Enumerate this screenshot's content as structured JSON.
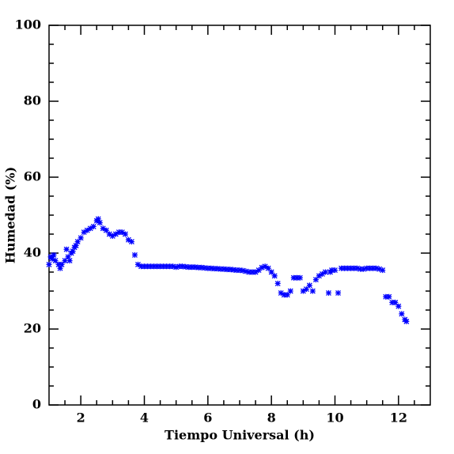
{
  "chart_data": {
    "type": "scatter",
    "x_label": "Tiempo Universal (h)",
    "y_label": "Humedad (%)",
    "color": "#0000ff",
    "xlim": [
      1,
      13
    ],
    "ylim": [
      0,
      100
    ],
    "xticks": [
      2,
      4,
      6,
      8,
      10,
      12
    ],
    "yticks": [
      0,
      20,
      40,
      60,
      80,
      100
    ],
    "xticks_minor": [
      1.5,
      2.5,
      3,
      3.5,
      4.5,
      5,
      5.5,
      6.5,
      7,
      7.5,
      8.5,
      9,
      9.5,
      10.5,
      11,
      11.5,
      12.5
    ],
    "yticks_minor": [
      5,
      10,
      15,
      25,
      30,
      35,
      45,
      50,
      55,
      65,
      70,
      75,
      85,
      90,
      95
    ],
    "x": [
      1.0,
      1.05,
      1.1,
      1.15,
      1.2,
      1.3,
      1.35,
      1.4,
      1.5,
      1.55,
      1.6,
      1.65,
      1.7,
      1.75,
      1.8,
      1.85,
      1.9,
      2.0,
      2.1,
      2.2,
      2.3,
      2.4,
      2.5,
      2.55,
      2.6,
      2.7,
      2.8,
      2.9,
      3.0,
      3.1,
      3.2,
      3.3,
      3.4,
      3.5,
      3.6,
      3.7,
      3.8,
      3.9,
      4.0,
      4.1,
      4.2,
      4.3,
      4.4,
      4.5,
      4.6,
      4.7,
      4.8,
      4.9,
      5.0,
      5.1,
      5.2,
      5.3,
      5.4,
      5.5,
      5.6,
      5.7,
      5.8,
      5.9,
      6.0,
      6.1,
      6.2,
      6.3,
      6.4,
      6.5,
      6.6,
      6.7,
      6.8,
      6.9,
      7.0,
      7.1,
      7.2,
      7.3,
      7.4,
      7.5,
      7.6,
      7.7,
      7.8,
      7.9,
      8.0,
      8.1,
      8.2,
      8.3,
      8.4,
      8.5,
      8.6,
      8.7,
      8.8,
      8.9,
      9.0,
      9.1,
      9.2,
      9.3,
      9.4,
      9.5,
      9.6,
      9.7,
      9.8,
      9.85,
      9.9,
      10.0,
      10.1,
      10.2,
      10.3,
      10.4,
      10.5,
      10.6,
      10.7,
      10.8,
      10.9,
      11.0,
      11.1,
      11.2,
      11.3,
      11.4,
      11.5,
      11.6,
      11.7,
      11.8,
      11.9,
      12.0,
      12.1,
      12.2,
      12.25
    ],
    "values": [
      37,
      39,
      38.5,
      39.5,
      38,
      37,
      36,
      37,
      38,
      41,
      39,
      38,
      40,
      40.5,
      41.5,
      42,
      43,
      44,
      45.5,
      46,
      46.5,
      47,
      48.5,
      49,
      48,
      46.5,
      46,
      45,
      44.5,
      45,
      45.5,
      45.5,
      45,
      43.5,
      43,
      39.5,
      37,
      36.5,
      36.5,
      36.5,
      36.5,
      36.5,
      36.5,
      36.5,
      36.5,
      36.5,
      36.5,
      36.5,
      36.3,
      36.5,
      36.5,
      36.4,
      36.3,
      36.3,
      36.3,
      36.2,
      36.2,
      36.1,
      36,
      36,
      35.9,
      35.9,
      35.8,
      35.8,
      35.7,
      35.7,
      35.6,
      35.5,
      35.5,
      35.4,
      35.2,
      35,
      35,
      35,
      35.5,
      36.2,
      36.5,
      36,
      35,
      34,
      32,
      29.5,
      29,
      29,
      30,
      33.5,
      33.5,
      33.5,
      30,
      30.5,
      31.5,
      30,
      33,
      34,
      34.5,
      35,
      29.5,
      35,
      35.5,
      35.5,
      29.5,
      36,
      36,
      36,
      36,
      36,
      36,
      35.8,
      35.8,
      36,
      36,
      36,
      36,
      35.8,
      35.5,
      28.5,
      28.5,
      27,
      27,
      26,
      24,
      22.5,
      22
    ]
  }
}
